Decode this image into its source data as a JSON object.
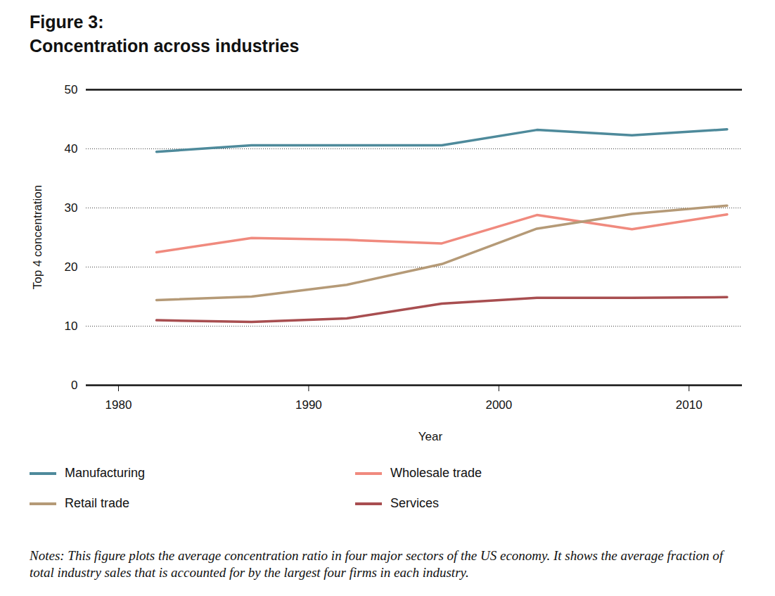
{
  "chart_data": {
    "type": "line",
    "title": "Figure 3:",
    "subtitle": "Concentration across industries",
    "x_label": "Year",
    "y_label": "Top 4 concentration",
    "caption": "Notes: This figure plots the average concentration ratio in four major sectors of the US economy. It shows the average fraction of total industry sales that is accounted for by the largest four firms in each industry.",
    "x": [
      1982,
      1987,
      1992,
      1997,
      2002,
      2007,
      2012
    ],
    "series": [
      {
        "name": "Manufacturing",
        "color": "#4e8a9b",
        "values": [
          39.5,
          40.6,
          40.6,
          40.6,
          43.2,
          42.3,
          43.3
        ]
      },
      {
        "name": "Wholesale trade",
        "color": "#f08a7e",
        "values": [
          22.5,
          24.9,
          24.6,
          24.0,
          28.8,
          26.4,
          28.9
        ]
      },
      {
        "name": "Retail trade",
        "color": "#b59a77",
        "values": [
          14.4,
          15.0,
          17.0,
          20.5,
          26.5,
          29.0,
          30.4
        ]
      },
      {
        "name": "Services",
        "color": "#a84e50",
        "values": [
          11.0,
          10.7,
          11.3,
          13.8,
          14.8,
          14.8,
          14.9
        ]
      }
    ],
    "xlim": [
      1978.3,
      2012.8
    ],
    "xticks": [
      1980,
      1990,
      2000,
      2010
    ],
    "ylim": [
      0,
      50
    ],
    "yticks": [
      0,
      10,
      20,
      30,
      40,
      50
    ],
    "grid": true,
    "legend": "bottom"
  }
}
